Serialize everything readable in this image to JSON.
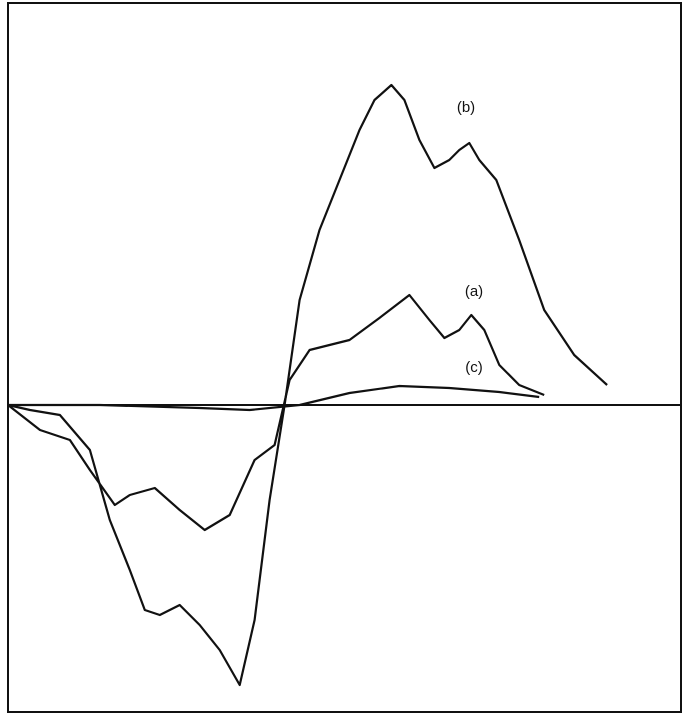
{
  "chart_data": {
    "type": "line",
    "xlim": [
      8,
      682
    ],
    "ylim": [
      -307,
      402
    ],
    "series": [
      {
        "name": "(a)",
        "color": "#111111",
        "x": [
          8,
          40,
          70,
          90,
          115,
          130,
          155,
          180,
          205,
          230,
          255,
          275,
          290,
          310,
          330,
          350,
          380,
          410,
          430,
          445,
          460,
          472,
          485,
          500,
          520,
          545
        ],
        "values": [
          0,
          -25,
          -35,
          -65,
          -100,
          -90,
          -83,
          -105,
          -125,
          -110,
          -55,
          -40,
          25,
          55,
          60,
          65,
          87,
          110,
          85,
          67,
          75,
          90,
          75,
          40,
          20,
          10
        ]
      },
      {
        "name": "(b)",
        "color": "#111111",
        "x": [
          8,
          30,
          60,
          90,
          110,
          130,
          145,
          160,
          180,
          200,
          220,
          240,
          255,
          270,
          285,
          300,
          320,
          340,
          360,
          375,
          392,
          405,
          420,
          435,
          450,
          460,
          470,
          480,
          497,
          520,
          545,
          575,
          608
        ],
        "values": [
          0,
          -5,
          -10,
          -45,
          -115,
          -165,
          -205,
          -210,
          -200,
          -220,
          -245,
          -280,
          -215,
          -95,
          0,
          105,
          175,
          225,
          275,
          305,
          320,
          305,
          265,
          237,
          245,
          255,
          262,
          245,
          225,
          165,
          95,
          50,
          20
        ]
      },
      {
        "name": "(c)",
        "color": "#111111",
        "x": [
          8,
          100,
          200,
          250,
          300,
          350,
          400,
          450,
          500,
          540
        ],
        "values": [
          0,
          0,
          -3,
          -5,
          0,
          12,
          19,
          17,
          13,
          8
        ]
      }
    ]
  }
}
